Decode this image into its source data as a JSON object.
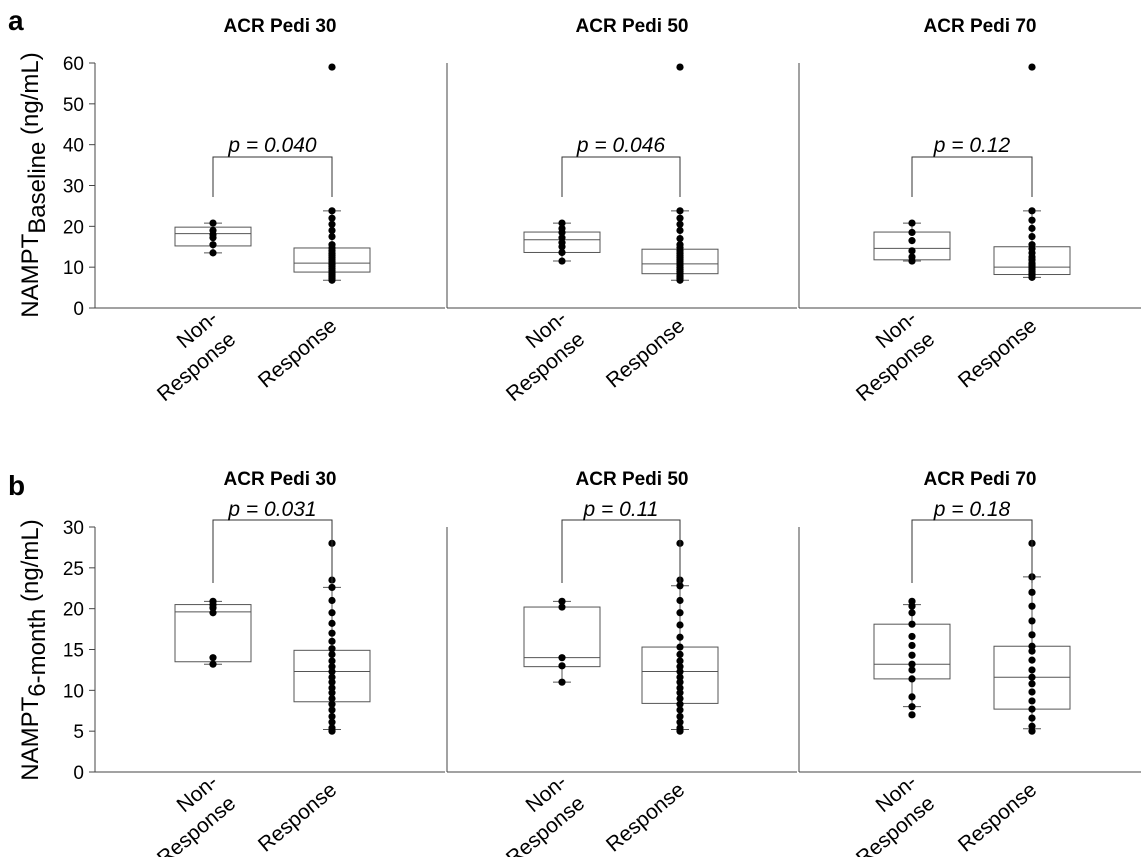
{
  "chart_data": [
    {
      "type": "box",
      "panel": "a",
      "ylabel_main": "NAMPT",
      "ylabel_sub": "Baseline",
      "ylabel_unit": " (ng/mL)",
      "ylim": [
        0,
        60
      ],
      "yticks": [
        "0",
        "10",
        "20",
        "30",
        "40",
        "50",
        "60"
      ],
      "categories_lines": [
        [
          "Non-",
          "Response"
        ],
        [
          "Response"
        ]
      ],
      "grid": false,
      "subplots": [
        {
          "title": "ACR Pedi 30",
          "p_label": "p = 0.040",
          "boxes": [
            {
              "q1": 15.2,
              "median": 18.2,
              "q3": 19.8,
              "whisker_low": 13.5,
              "whisker_high": 20.8,
              "points": [
                13.5,
                15.5,
                17.2,
                18.0,
                19.0,
                20.8
              ]
            },
            {
              "q1": 8.8,
              "median": 11.0,
              "q3": 14.7,
              "whisker_low": 6.8,
              "whisker_high": 23.8,
              "points": [
                6.8,
                7.3,
                7.8,
                8.3,
                8.8,
                9.2,
                9.7,
                10.2,
                10.6,
                11.0,
                11.4,
                11.8,
                12.3,
                12.8,
                13.3,
                14.0,
                14.7,
                15.5,
                17.5,
                19.0,
                20.5,
                22.0,
                23.8,
                59.0
              ]
            }
          ]
        },
        {
          "title": "ACR Pedi 50",
          "p_label": "p = 0.046",
          "boxes": [
            {
              "q1": 13.6,
              "median": 16.7,
              "q3": 18.6,
              "whisker_low": 11.5,
              "whisker_high": 20.8,
              "points": [
                11.5,
                13.6,
                15.0,
                16.0,
                17.2,
                18.5,
                19.5,
                20.8
              ]
            },
            {
              "q1": 8.4,
              "median": 10.8,
              "q3": 14.4,
              "whisker_low": 6.8,
              "whisker_high": 23.8,
              "points": [
                6.8,
                7.3,
                7.8,
                8.4,
                8.9,
                9.4,
                9.9,
                10.4,
                10.8,
                11.3,
                11.8,
                12.3,
                12.8,
                13.4,
                14.0,
                14.8,
                15.5,
                17.0,
                19.0,
                20.5,
                22.0,
                23.8,
                59.0
              ]
            }
          ]
        },
        {
          "title": "ACR Pedi 70",
          "p_label": "p = 0.12",
          "boxes": [
            {
              "q1": 11.8,
              "median": 14.6,
              "q3": 18.6,
              "whisker_low": 11.5,
              "whisker_high": 20.8,
              "points": [
                11.5,
                12.5,
                14.0,
                16.5,
                18.5,
                20.8
              ]
            },
            {
              "q1": 8.2,
              "median": 10.0,
              "q3": 15.0,
              "whisker_low": 7.5,
              "whisker_high": 23.8,
              "points": [
                7.5,
                8.0,
                8.5,
                9.0,
                9.5,
                10.0,
                10.5,
                11.0,
                11.8,
                12.5,
                13.5,
                14.5,
                15.5,
                17.5,
                19.5,
                21.5,
                23.8,
                59.0
              ]
            }
          ]
        }
      ]
    },
    {
      "type": "box",
      "panel": "b",
      "ylabel_main": "NAMPT",
      "ylabel_sub": "6-month",
      "ylabel_unit": " (ng/mL)",
      "ylim": [
        0,
        30
      ],
      "yticks": [
        "0",
        "5",
        "10",
        "15",
        "20",
        "25",
        "30"
      ],
      "categories_lines": [
        [
          "Non-",
          "Response"
        ],
        [
          "Response"
        ]
      ],
      "grid": false,
      "subplots": [
        {
          "title": "ACR Pedi 30",
          "p_label": "p = 0.031",
          "boxes": [
            {
              "q1": 13.5,
              "median": 19.6,
              "q3": 20.5,
              "whisker_low": 13.2,
              "whisker_high": 20.9,
              "points": [
                13.2,
                14.0,
                19.5,
                20.1,
                20.5,
                20.9
              ]
            },
            {
              "q1": 8.6,
              "median": 12.3,
              "q3": 14.9,
              "whisker_low": 5.2,
              "whisker_high": 22.6,
              "points": [
                5.0,
                5.4,
                6.1,
                6.8,
                7.6,
                8.3,
                9.0,
                9.7,
                10.3,
                11.0,
                11.6,
                12.3,
                12.9,
                13.6,
                14.4,
                15.1,
                16.0,
                17.0,
                18.2,
                19.5,
                21.0,
                22.6,
                23.5,
                28.0
              ]
            }
          ]
        },
        {
          "title": "ACR Pedi 50",
          "p_label": "p = 0.11",
          "boxes": [
            {
              "q1": 12.9,
              "median": 14.0,
              "q3": 20.2,
              "whisker_low": 11.0,
              "whisker_high": 20.9,
              "points": [
                11.0,
                13.0,
                14.0,
                20.2,
                20.9
              ]
            },
            {
              "q1": 8.4,
              "median": 12.3,
              "q3": 15.3,
              "whisker_low": 5.2,
              "whisker_high": 22.8,
              "points": [
                5.0,
                5.4,
                6.1,
                6.8,
                7.6,
                8.3,
                9.0,
                9.7,
                10.3,
                11.0,
                11.6,
                12.3,
                12.9,
                13.6,
                14.4,
                15.3,
                16.5,
                18.0,
                19.5,
                21.0,
                22.8,
                23.5,
                28.0
              ]
            }
          ]
        },
        {
          "title": "ACR Pedi 70",
          "p_label": "p = 0.18",
          "boxes": [
            {
              "q1": 11.4,
              "median": 13.2,
              "q3": 18.1,
              "whisker_low": 8.0,
              "whisker_high": 20.5,
              "points": [
                7.0,
                8.0,
                9.2,
                11.4,
                12.5,
                13.2,
                14.3,
                15.5,
                16.6,
                18.1,
                19.5,
                20.3,
                20.9
              ]
            },
            {
              "q1": 7.7,
              "median": 11.6,
              "q3": 15.4,
              "whisker_low": 5.3,
              "whisker_high": 23.9,
              "points": [
                5.0,
                5.6,
                6.6,
                7.7,
                8.7,
                9.8,
                10.8,
                11.6,
                12.5,
                13.7,
                14.8,
                15.4,
                16.8,
                18.5,
                20.3,
                22.0,
                23.9,
                28.0
              ]
            }
          ]
        }
      ]
    }
  ]
}
